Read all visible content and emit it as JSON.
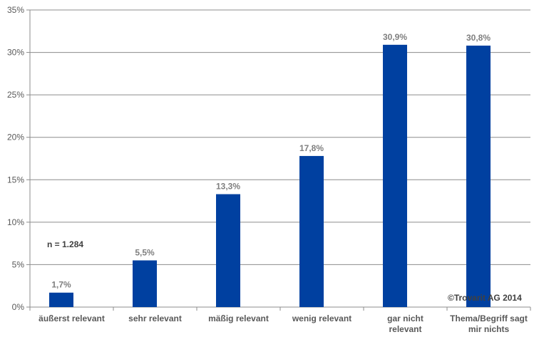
{
  "chart_data": {
    "type": "bar",
    "categories": [
      [
        "äußerst relevant"
      ],
      [
        "sehr relevant"
      ],
      [
        "mäßig relevant"
      ],
      [
        "wenig relevant"
      ],
      [
        "gar nicht",
        "relevant"
      ],
      [
        "Thema/Begriff sagt",
        "mir nichts"
      ]
    ],
    "values": [
      1.7,
      5.5,
      13.3,
      17.8,
      30.9,
      30.8
    ],
    "data_labels": [
      "1,7%",
      "5,5%",
      "13,3%",
      "17,8%",
      "30,9%",
      "30,8%"
    ],
    "ylim": [
      0,
      35
    ],
    "yticks": [
      0,
      5,
      10,
      15,
      20,
      25,
      30,
      35
    ],
    "ytick_labels": [
      "0%",
      "5%",
      "10%",
      "15%",
      "20%",
      "25%",
      "30%",
      "35%"
    ],
    "grid": true,
    "bar_color": "#0040A0",
    "grid_color": "#8c8c8c",
    "title": "",
    "xlabel": "",
    "ylabel": ""
  },
  "annotations": {
    "sample_size": "n = 1.284",
    "copyright": "©Trovarit AG 2014"
  }
}
